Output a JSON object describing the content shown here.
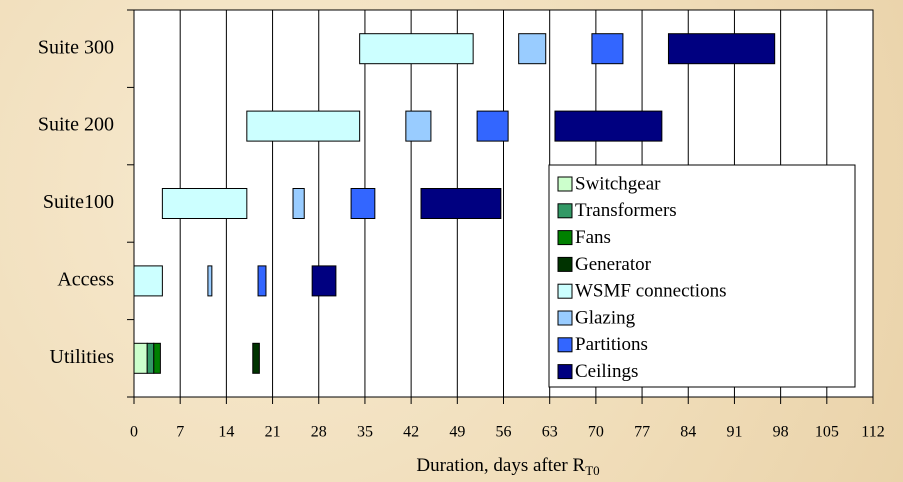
{
  "chart_data": {
    "type": "gantt",
    "xlabel": "Duration, days after R",
    "xlabel_sub": "T0",
    "categories": [
      "Utilities",
      "Access",
      "Suite100",
      "Suite 200",
      "Suite 300"
    ],
    "xlim": [
      0,
      112
    ],
    "xticks": [
      0,
      7,
      14,
      21,
      28,
      35,
      42,
      49,
      56,
      63,
      70,
      77,
      84,
      91,
      98,
      105,
      112
    ],
    "grid": true,
    "legend": "lower right",
    "series": [
      {
        "name": "Switchgear",
        "color": "#ccffcc",
        "values": [
          [
            0,
            2
          ],
          null,
          null,
          null,
          null
        ]
      },
      {
        "name": "Transformers",
        "color": "#339966",
        "values": [
          [
            2,
            3
          ],
          null,
          null,
          null,
          null
        ]
      },
      {
        "name": "Fans",
        "color": "#008000",
        "values": [
          [
            3,
            4
          ],
          null,
          null,
          null,
          null
        ]
      },
      {
        "name": "Generator",
        "color": "#003300",
        "values": [
          [
            18,
            19
          ],
          null,
          null,
          null,
          null
        ]
      },
      {
        "name": "WSMF connections",
        "color": "#ccffff",
        "values": [
          null,
          [
            0,
            4.3
          ],
          [
            4.3,
            17.1
          ],
          [
            17.1,
            34.2
          ],
          [
            34.2,
            51.4
          ]
        ]
      },
      {
        "name": "Glazing",
        "color": "#99ccff",
        "values": [
          null,
          [
            11.2,
            11.8
          ],
          [
            24.1,
            25.8
          ],
          [
            41.2,
            45
          ],
          [
            58.3,
            62.4
          ]
        ]
      },
      {
        "name": "Partitions",
        "color": "#3366ff",
        "values": [
          null,
          [
            18.8,
            20
          ],
          [
            32.9,
            36.5
          ],
          [
            52,
            56.7
          ],
          [
            69.4,
            74.1
          ]
        ]
      },
      {
        "name": "Ceilings",
        "color": "#000080",
        "values": [
          null,
          [
            27,
            30.6
          ],
          [
            43.5,
            55.6
          ],
          [
            63.8,
            80
          ],
          [
            81,
            97.1
          ]
        ]
      }
    ]
  }
}
